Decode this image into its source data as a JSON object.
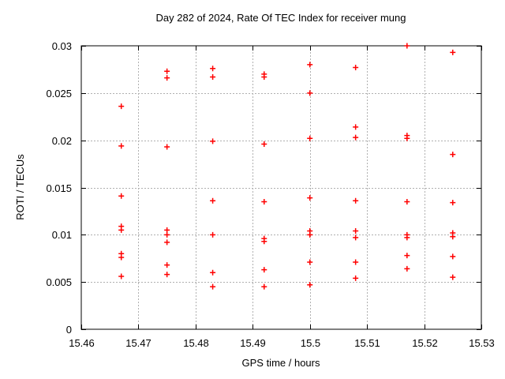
{
  "window": {
    "background_color": "#ffffff"
  },
  "chart_data": {
    "type": "scatter",
    "title": "Day 282 of 2024, Rate Of TEC Index for receiver mung",
    "xlabel": "GPS time / hours",
    "ylabel": "ROTI / TECUs",
    "xlim": [
      15.46,
      15.53
    ],
    "ylim": [
      0,
      0.03
    ],
    "grid": true,
    "legend": "none",
    "marker": "plus",
    "marker_color": "#ff0000",
    "frame_color": "#000000",
    "grid_color": "#b0b0b0",
    "x_ticks": [
      {
        "v": 15.46,
        "label": "15.46"
      },
      {
        "v": 15.47,
        "label": "15.47"
      },
      {
        "v": 15.48,
        "label": "15.48"
      },
      {
        "v": 15.49,
        "label": "15.49"
      },
      {
        "v": 15.5,
        "label": "15.5"
      },
      {
        "v": 15.51,
        "label": "15.51"
      },
      {
        "v": 15.52,
        "label": "15.52"
      },
      {
        "v": 15.53,
        "label": "15.53"
      }
    ],
    "y_ticks": [
      {
        "v": 0,
        "label": "0"
      },
      {
        "v": 0.005,
        "label": "0.005"
      },
      {
        "v": 0.01,
        "label": "0.01"
      },
      {
        "v": 0.015,
        "label": "0.015"
      },
      {
        "v": 0.02,
        "label": "0.02"
      },
      {
        "v": 0.025,
        "label": "0.025"
      },
      {
        "v": 0.03,
        "label": "0.03"
      }
    ],
    "series": [
      {
        "name": "ROTI",
        "points": [
          [
            15.467,
            0.0236
          ],
          [
            15.467,
            0.0194
          ],
          [
            15.467,
            0.0141
          ],
          [
            15.467,
            0.0109
          ],
          [
            15.467,
            0.0105
          ],
          [
            15.467,
            0.008
          ],
          [
            15.467,
            0.0076
          ],
          [
            15.467,
            0.0056
          ],
          [
            15.475,
            0.0273
          ],
          [
            15.475,
            0.0266
          ],
          [
            15.475,
            0.0193
          ],
          [
            15.475,
            0.0105
          ],
          [
            15.475,
            0.01
          ],
          [
            15.475,
            0.0092
          ],
          [
            15.475,
            0.0068
          ],
          [
            15.475,
            0.0058
          ],
          [
            15.483,
            0.0276
          ],
          [
            15.483,
            0.0267
          ],
          [
            15.483,
            0.0199
          ],
          [
            15.483,
            0.0136
          ],
          [
            15.483,
            0.01
          ],
          [
            15.483,
            0.006
          ],
          [
            15.483,
            0.0045
          ],
          [
            15.492,
            0.027
          ],
          [
            15.492,
            0.0267
          ],
          [
            15.492,
            0.0196
          ],
          [
            15.492,
            0.0135
          ],
          [
            15.492,
            0.0096
          ],
          [
            15.492,
            0.0093
          ],
          [
            15.492,
            0.0063
          ],
          [
            15.492,
            0.0045
          ],
          [
            15.5,
            0.028
          ],
          [
            15.5,
            0.025
          ],
          [
            15.5,
            0.0202
          ],
          [
            15.5,
            0.0139
          ],
          [
            15.5,
            0.0104
          ],
          [
            15.5,
            0.01
          ],
          [
            15.5,
            0.0071
          ],
          [
            15.5,
            0.0047
          ],
          [
            15.508,
            0.0277
          ],
          [
            15.508,
            0.0214
          ],
          [
            15.508,
            0.0203
          ],
          [
            15.508,
            0.0136
          ],
          [
            15.508,
            0.0104
          ],
          [
            15.508,
            0.0097
          ],
          [
            15.508,
            0.0071
          ],
          [
            15.508,
            0.0054
          ],
          [
            15.517,
            0.03
          ],
          [
            15.517,
            0.0205
          ],
          [
            15.517,
            0.0202
          ],
          [
            15.517,
            0.0135
          ],
          [
            15.517,
            0.01
          ],
          [
            15.517,
            0.0097
          ],
          [
            15.517,
            0.0078
          ],
          [
            15.517,
            0.0064
          ],
          [
            15.525,
            0.0293
          ],
          [
            15.525,
            0.0185
          ],
          [
            15.525,
            0.0134
          ],
          [
            15.525,
            0.0102
          ],
          [
            15.525,
            0.0098
          ],
          [
            15.525,
            0.0077
          ],
          [
            15.525,
            0.0055
          ]
        ]
      }
    ]
  }
}
